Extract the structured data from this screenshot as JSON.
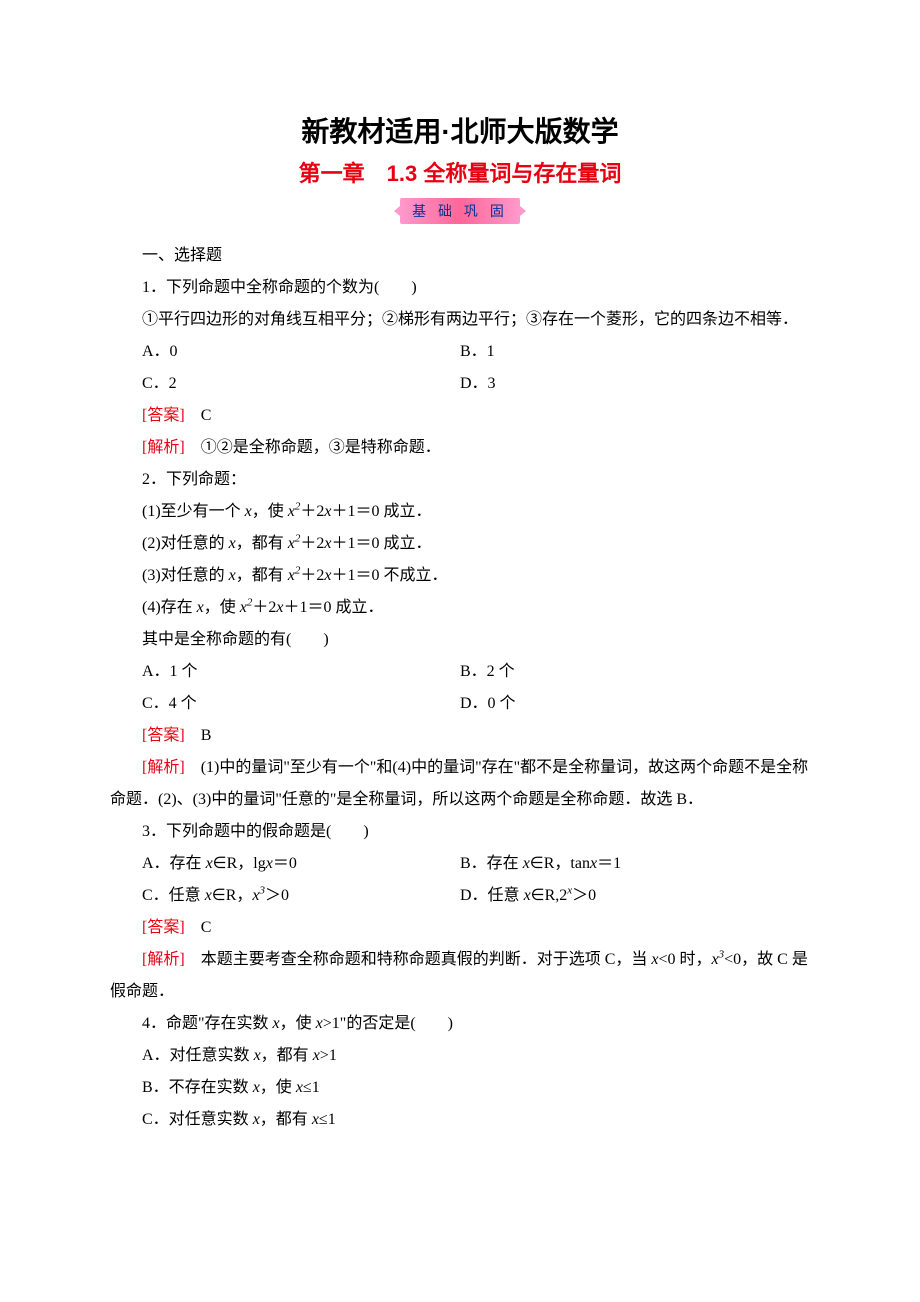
{
  "title": "新教材适用·北师大版数学",
  "chapter": "第一章　1.3 全称量词与存在量词",
  "badge": "基 础 巩 固",
  "section_heading": "一、选择题",
  "colors": {
    "title_color": "#000000",
    "chapter_color": "#e60012",
    "badge_bg_start": "#ff99cc",
    "badge_bg_mid": "#ff6699",
    "badge_text_color": "#003399",
    "answer_color": "#e60012",
    "text_color": "#000000",
    "background": "#ffffff"
  },
  "typography": {
    "title_fontsize": 28,
    "chapter_fontsize": 22,
    "body_fontsize": 16,
    "line_height": 2.0
  },
  "q1": {
    "stem": "1．下列命题中全称命题的个数为(　　)",
    "desc": "①平行四边形的对角线互相平分；②梯形有两边平行；③存在一个菱形，它的四条边不相等．",
    "optA": "A．0",
    "optB": "B．1",
    "optC": "C．2",
    "optD": "D．3",
    "answer_label": "[答案]",
    "answer": "C",
    "analysis_label": "[解析]",
    "analysis": "①②是全称命题，③是特称命题．"
  },
  "q2": {
    "stem": "2．下列命题：",
    "l1_a": "(1)至少有一个 ",
    "l1_b": "，使 ",
    "l1_c": "＝0 成立．",
    "l2_a": "(2)对任意的 ",
    "l2_b": "，都有 ",
    "l2_c": "＝0 成立．",
    "l3_a": "(3)对任意的 ",
    "l3_b": "，都有 ",
    "l3_c": "＝0 不成立．",
    "l4_a": "(4)存在 ",
    "l4_b": "，使 ",
    "l4_c": "＝0 成立．",
    "tail": "其中是全称命题的有(　　)",
    "optA": "A．1 个",
    "optB": "B．2 个",
    "optC": "C．4 个",
    "optD": "D．0 个",
    "answer_label": "[答案]",
    "answer": "B",
    "analysis_label": "[解析]",
    "analysis": "(1)中的量词\"至少有一个\"和(4)中的量词\"存在\"都不是全称量词，故这两个命题不是全称命题．(2)、(3)中的量词\"任意的\"是全称量词，所以这两个命题是全称命题．故选 B．"
  },
  "q3": {
    "stem": "3．下列命题中的假命题是(　　)",
    "optA_a": "A．存在 ",
    "optA_b": "∈R，lg",
    "optA_c": "＝0",
    "optB_a": "B．存在 ",
    "optB_b": "∈R，tan",
    "optB_c": "＝1",
    "optC_a": "C．任意 ",
    "optC_b": "∈R，",
    "optC_c": "＞0",
    "optD_a": "D．任意 ",
    "optD_b": "∈R,2",
    "optD_c": "＞0",
    "answer_label": "[答案]",
    "answer": "C",
    "analysis_label": "[解析]",
    "analysis_a": "本题主要考查全称命题和特称命题真假的判断．对于选项 C，当 ",
    "analysis_b": "<0 时，",
    "analysis_c": "<0，故 C 是假命题．"
  },
  "q4": {
    "stem_a": "4．命题\"存在实数 ",
    "stem_b": "，使 ",
    "stem_c": ">1\"的否定是(　　)",
    "optA_a": "A．对任意实数 ",
    "optA_b": "，都有 ",
    "optA_c": ">1",
    "optB_a": "B．不存在实数 ",
    "optB_b": "，使 ",
    "optB_c": "≤1",
    "optC_a": "C．对任意实数 ",
    "optC_b": "，都有 ",
    "optC_c": "≤1"
  }
}
